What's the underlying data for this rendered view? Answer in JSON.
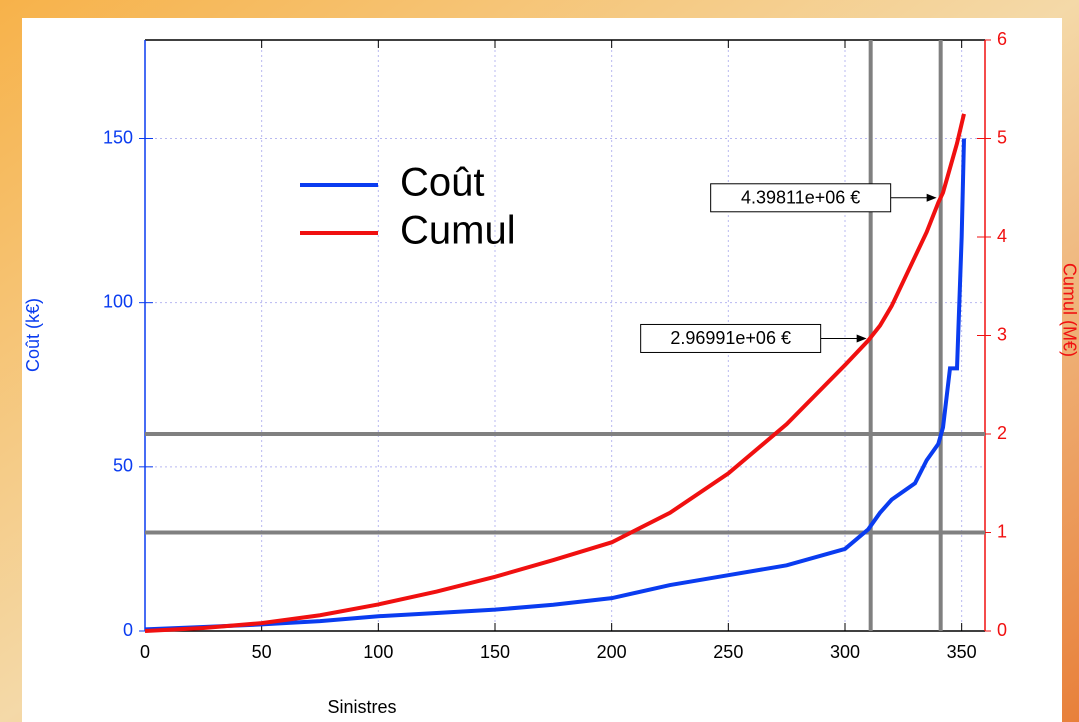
{
  "chart_data": {
    "type": "line",
    "x_label": "Sinistres",
    "y_label": "Coût (k€)",
    "y2_label": "Cumul (M€)",
    "x": [
      0,
      25,
      50,
      75,
      100,
      125,
      150,
      175,
      200,
      225,
      250,
      275,
      300,
      310,
      315,
      320,
      330,
      335,
      340,
      342,
      345,
      348,
      350,
      351
    ],
    "series": [
      {
        "name": "Coût",
        "color": "#0a3cf0",
        "values": [
          0.5,
          1.2,
          2,
          3,
          4.5,
          5.5,
          6.5,
          8,
          10,
          14,
          17,
          20,
          25,
          31,
          36,
          40,
          45,
          52,
          57,
          62,
          80,
          80,
          120,
          150
        ]
      },
      {
        "name": "Cumul",
        "color": "#f01010",
        "axis": "y2",
        "values": [
          0,
          0.03,
          0.08,
          0.16,
          0.27,
          0.4,
          0.55,
          0.72,
          0.9,
          1.2,
          1.6,
          2.1,
          2.7,
          2.95,
          3.1,
          3.3,
          3.8,
          4.05,
          4.35,
          4.45,
          4.7,
          4.95,
          5.15,
          5.25
        ]
      }
    ],
    "xlim": [
      0,
      360
    ],
    "xticks": [
      0,
      50,
      100,
      150,
      200,
      250,
      300,
      350
    ],
    "ylim": [
      0,
      180
    ],
    "yticks": [
      0,
      50,
      100,
      150
    ],
    "y2lim": [
      0,
      6
    ],
    "y2ticks": [
      0,
      1,
      2,
      3,
      4,
      5,
      6
    ],
    "grid": true,
    "vlines": [
      311,
      341
    ],
    "hlines": [
      30,
      60
    ],
    "annotations": [
      {
        "text": "2.96991e+06 €",
        "x": 311,
        "y": 2.96991
      },
      {
        "text": "4.39811e+06 €",
        "x": 341,
        "y": 4.39811
      }
    ]
  }
}
